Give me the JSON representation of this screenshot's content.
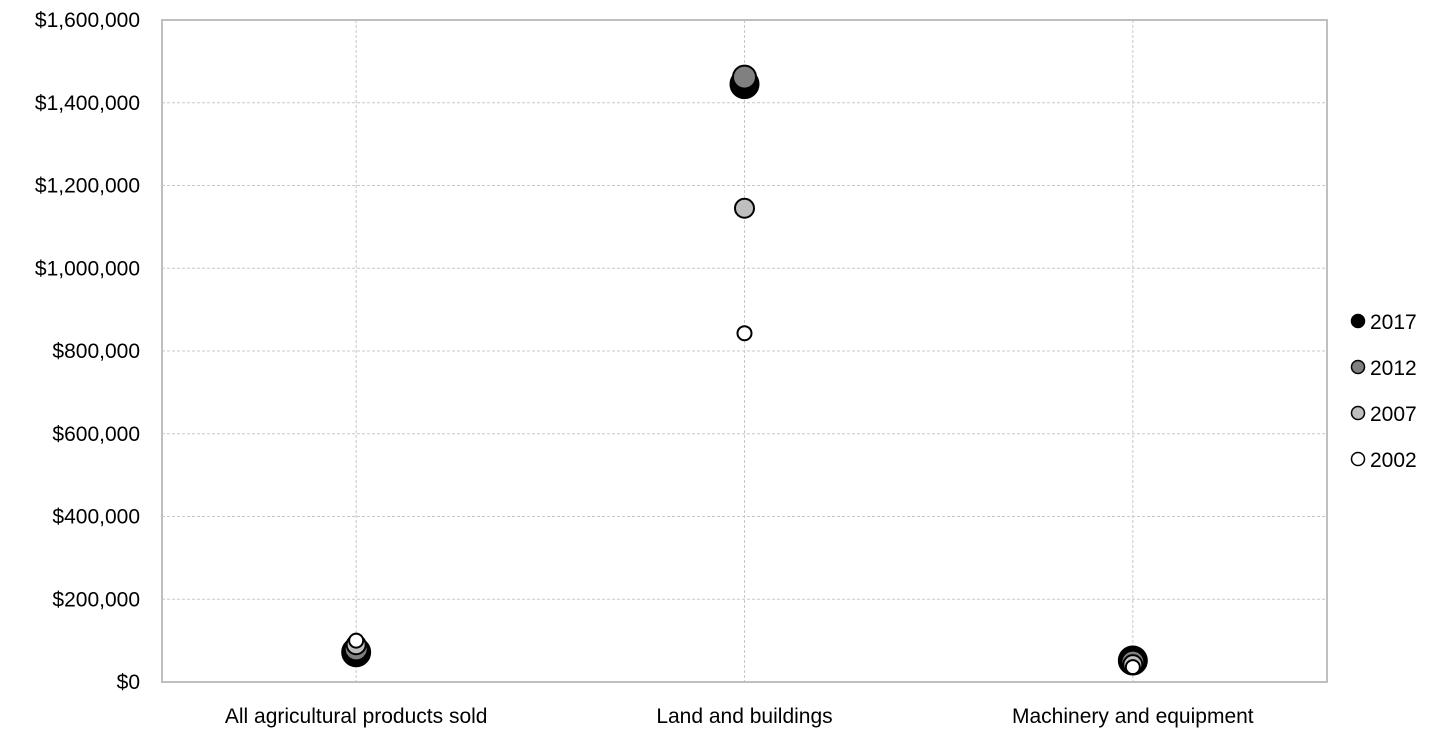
{
  "chart_data": {
    "type": "scatter",
    "title": "",
    "xlabel": "",
    "ylabel": "",
    "categories": [
      "All agricultural products sold",
      "Land and buildings",
      "Machinery and equipment"
    ],
    "ylim": [
      0,
      1600000
    ],
    "y_ticks": [
      0,
      200000,
      400000,
      600000,
      800000,
      1000000,
      1200000,
      1400000,
      1600000
    ],
    "y_tick_labels": [
      "$0",
      "$200,000",
      "$400,000",
      "$600,000",
      "$800,000",
      "$1,000,000",
      "$1,200,000",
      "$1,400,000",
      "$1,600,000"
    ],
    "grid": true,
    "legend_position": "right",
    "series": [
      {
        "name": "2017",
        "color": "#000000",
        "values": [
          72000,
          1445000,
          52000
        ]
      },
      {
        "name": "2012",
        "color": "#808080",
        "values": [
          80000,
          1462000,
          48000
        ]
      },
      {
        "name": "2007",
        "color": "#bfbfbf",
        "values": [
          90000,
          1145000,
          42000
        ]
      },
      {
        "name": "2002",
        "color": "#ffffff",
        "values": [
          100000,
          843000,
          36000
        ]
      }
    ]
  }
}
